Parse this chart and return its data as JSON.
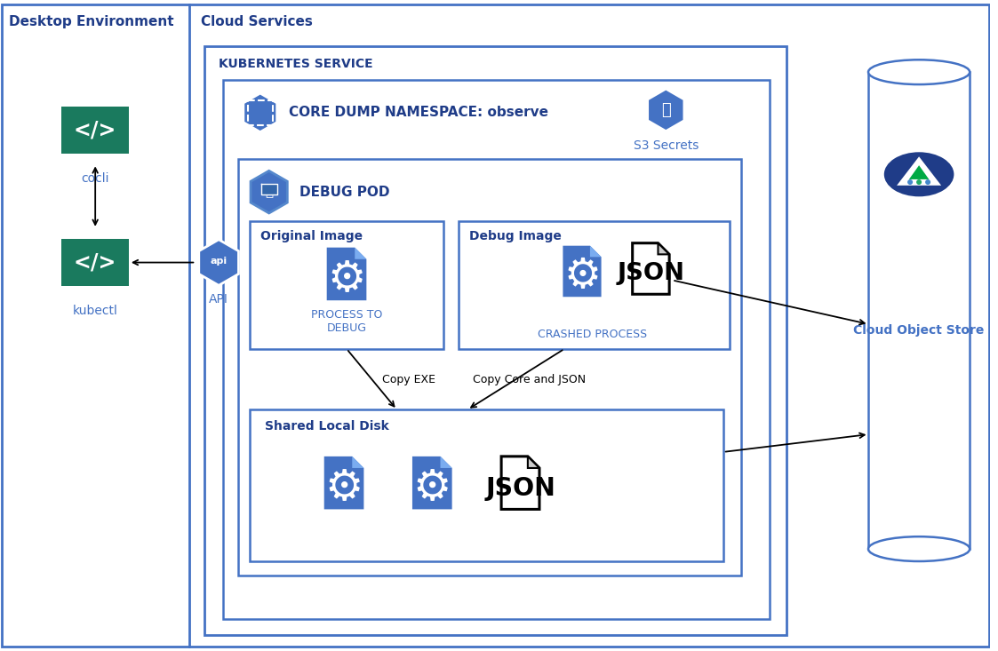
{
  "fig_width": 11.23,
  "fig_height": 7.33,
  "bg_color": "#ffffff",
  "border_color": "#4472c4",
  "title_color": "#1f3c88",
  "green_color": "#1a7a5e",
  "blue_color": "#4472c4",
  "label_color": "#4472c4",
  "desktop_title": "Desktop Environment",
  "cloud_title": "Cloud Services",
  "k8s_label": "KUBERNETES SERVICE",
  "namespace_label": "CORE DUMP NAMESPACE: observe",
  "s3_label": "S3 Secrets",
  "debug_pod_label": "DEBUG POD",
  "orig_image_label": "Original Image",
  "debug_image_label": "Debug Image",
  "process_debug_label": "PROCESS TO\nDEBUG",
  "crashed_label": "CRASHED PROCESS",
  "shared_disk_label": "Shared Local Disk",
  "cloud_store_label": "Cloud Object Store",
  "cocli_label": "cocli",
  "kubectl_label": "kubectl",
  "api_label": "API",
  "copy_exe_label": "Copy EXE",
  "copy_core_label": "Copy Core and JSON"
}
